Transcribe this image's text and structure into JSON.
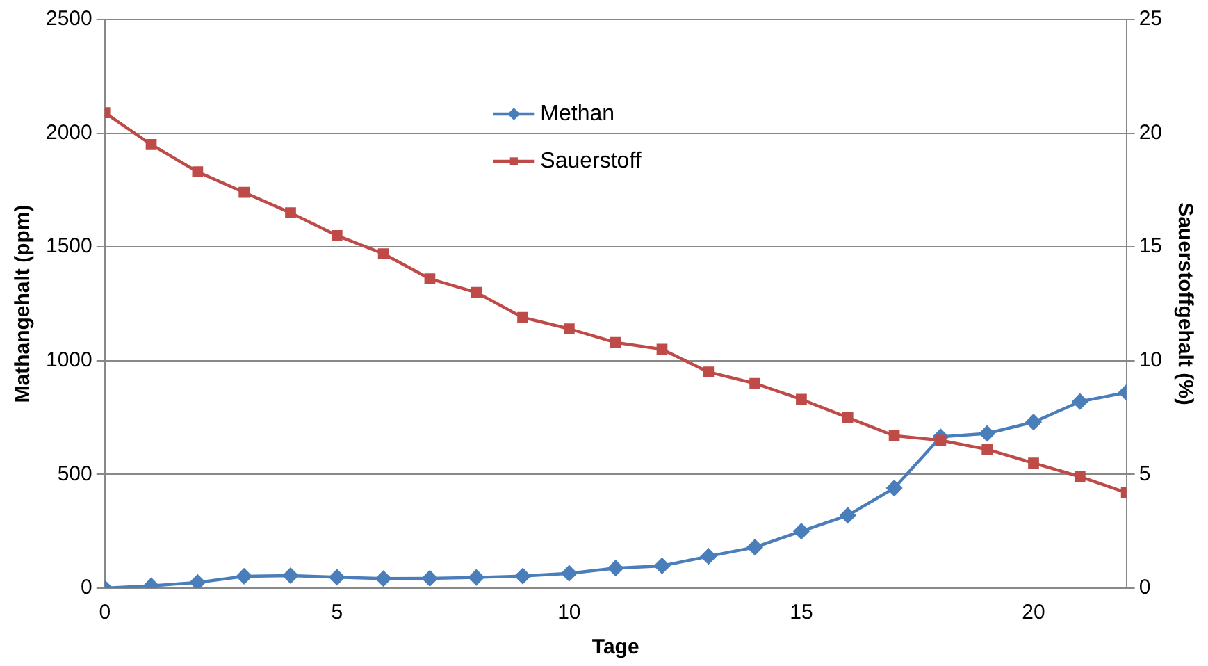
{
  "chart_data": {
    "type": "line",
    "xlabel": "Tage",
    "ylabel": "Mathangehalt (ppm)",
    "y2label": "Sauerstoffgehalt (%)",
    "x": [
      0,
      1,
      2,
      3,
      4,
      5,
      6,
      7,
      8,
      9,
      10,
      11,
      12,
      13,
      14,
      15,
      16,
      17,
      18,
      19,
      20,
      21,
      22
    ],
    "xlim": [
      0,
      22
    ],
    "xticks": [
      0,
      5,
      10,
      15,
      20
    ],
    "ylim": [
      0,
      2500
    ],
    "yticks": [
      0,
      500,
      1000,
      1500,
      2000,
      2500
    ],
    "y2lim": [
      0,
      25
    ],
    "y2ticks": [
      0,
      5,
      10,
      15,
      20,
      25
    ],
    "grid": "y",
    "legend": "top",
    "series": [
      {
        "name": "Methan",
        "color": "#4a7ebb",
        "marker": "diamond",
        "values": [
          0,
          10,
          25,
          52,
          55,
          48,
          42,
          43,
          47,
          53,
          65,
          88,
          98,
          140,
          180,
          250,
          320,
          440,
          665,
          680,
          730,
          820,
          860
        ]
      },
      {
        "name": "Sauerstoff",
        "color": "#be4b48",
        "marker": "square",
        "axis": "y2",
        "values": [
          20.9,
          19.5,
          18.3,
          17.4,
          16.5,
          15.5,
          14.7,
          13.6,
          13.0,
          11.9,
          11.4,
          10.8,
          10.5,
          9.5,
          9.0,
          8.3,
          7.5,
          6.7,
          6.5,
          6.1,
          5.5,
          4.9,
          4.2
        ]
      }
    ]
  }
}
